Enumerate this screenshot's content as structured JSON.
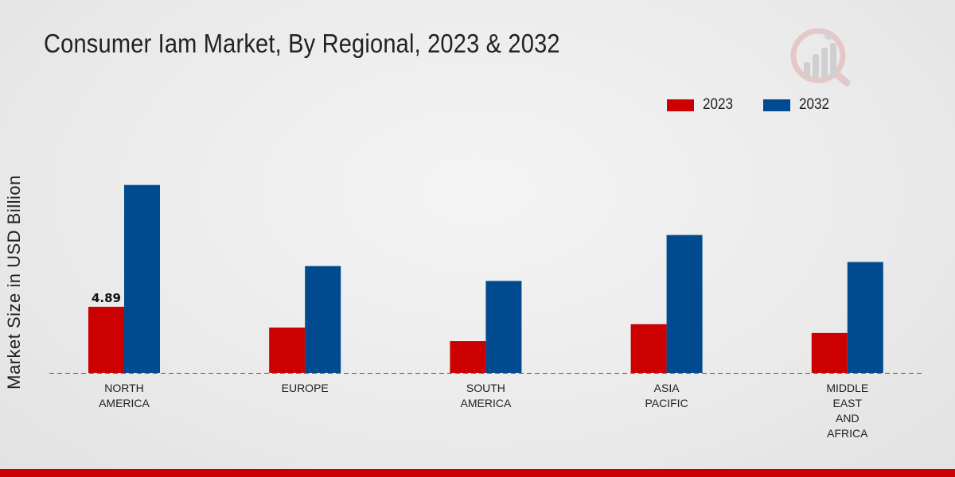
{
  "page": {
    "title": "Consumer Iam Market, By Regional, 2023 & 2032",
    "accent_color": "#cc0000"
  },
  "chart_data": {
    "type": "bar",
    "title": "Consumer Iam Market, By Regional, 2023 & 2032",
    "xlabel": "",
    "ylabel": "Market Size in USD Billion",
    "categories": [
      [
        "NORTH",
        "AMERICA"
      ],
      [
        "EUROPE"
      ],
      [
        "SOUTH",
        "AMERICA"
      ],
      [
        "ASIA",
        "PACIFIC"
      ],
      [
        "MIDDLE",
        "EAST",
        "AND",
        "AFRICA"
      ]
    ],
    "series": [
      {
        "name": "2023",
        "color": "#cc0000",
        "values": [
          4.89,
          3.35,
          2.35,
          3.6,
          2.95
        ]
      },
      {
        "name": "2032",
        "color": "#004a8f",
        "values": [
          13.9,
          7.9,
          6.8,
          10.2,
          8.2
        ]
      }
    ],
    "data_labels": [
      {
        "series": 0,
        "index": 0,
        "text": "4.89"
      }
    ],
    "ylim": [
      0,
      22
    ],
    "legend_position": "top-right",
    "grid": false
  }
}
